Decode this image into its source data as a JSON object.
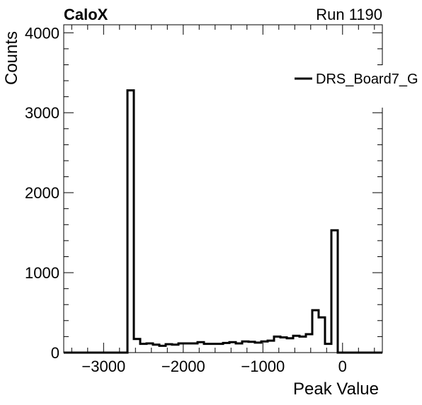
{
  "header": {
    "left_label": "CaloX",
    "right_label": "Run 1190"
  },
  "chart_data": {
    "type": "histogram",
    "xlabel": "Peak Value",
    "ylabel": "Counts",
    "xlim": [
      -3500,
      500
    ],
    "ylim": [
      0,
      4100
    ],
    "grid": false,
    "legend_position": "top-right",
    "x_ticks": [
      -3000,
      -2000,
      -1000,
      0
    ],
    "x_tick_labels": [
      "−3000",
      "−2000",
      "−1000",
      "0"
    ],
    "y_ticks": [
      0,
      1000,
      2000,
      3000,
      4000
    ],
    "y_tick_labels": [
      "0",
      "1000",
      "2000",
      "3000",
      "4000"
    ],
    "bin_edges": [
      -3500,
      -2700,
      -2620,
      -2540,
      -2460,
      -2380,
      -2300,
      -2220,
      -2140,
      -2060,
      -1980,
      -1900,
      -1820,
      -1740,
      -1660,
      -1580,
      -1500,
      -1420,
      -1340,
      -1260,
      -1180,
      -1100,
      -1020,
      -940,
      -860,
      -780,
      -700,
      -620,
      -540,
      -460,
      -380,
      -300,
      -220,
      -140,
      -60,
      20,
      500
    ],
    "counts": [
      0,
      3280,
      170,
      110,
      115,
      100,
      85,
      105,
      100,
      115,
      115,
      115,
      130,
      110,
      110,
      110,
      120,
      130,
      115,
      140,
      135,
      125,
      140,
      150,
      200,
      190,
      180,
      210,
      200,
      230,
      530,
      440,
      110,
      1530,
      0,
      0
    ],
    "series": [
      {
        "name": "DRS_Board7_G",
        "color": "#000000"
      }
    ]
  }
}
